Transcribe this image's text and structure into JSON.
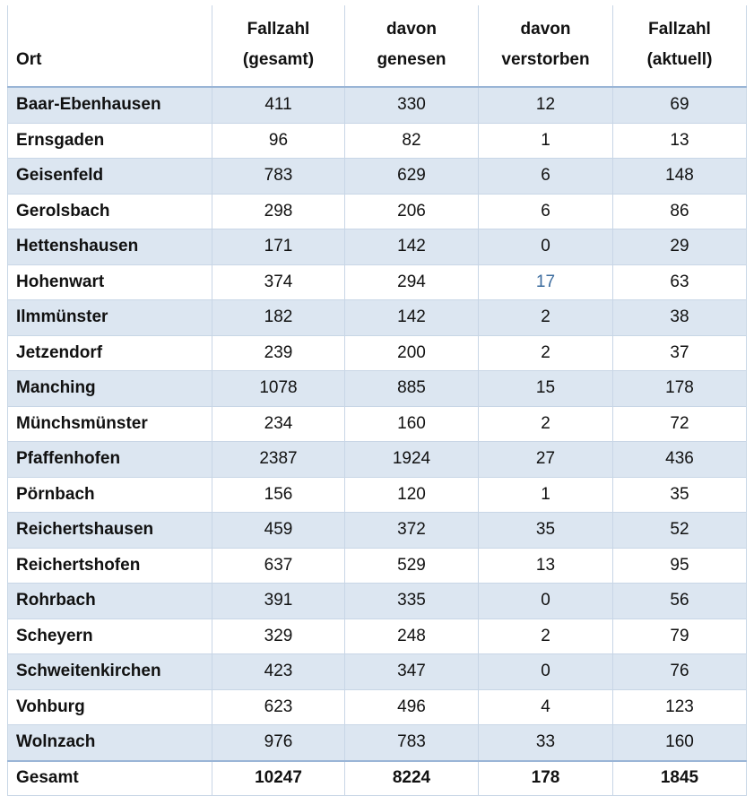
{
  "table": {
    "headers": [
      [
        "Ort"
      ],
      [
        "Fallzahl",
        "(gesamt)"
      ],
      [
        "davon",
        "genesen"
      ],
      [
        "davon",
        "verstorben"
      ],
      [
        "Fallzahl",
        "(aktuell)"
      ]
    ],
    "rows": [
      [
        "Baar-Ebenhausen",
        411,
        330,
        12,
        69
      ],
      [
        "Ernsgaden",
        96,
        82,
        1,
        13
      ],
      [
        "Geisenfeld",
        783,
        629,
        6,
        148
      ],
      [
        "Gerolsbach",
        298,
        206,
        6,
        86
      ],
      [
        "Hettenshausen",
        171,
        142,
        0,
        29
      ],
      [
        "Hohenwart",
        374,
        294,
        {
          "text": 17,
          "color": "#3c6c9e"
        },
        63
      ],
      [
        "Ilmmünster",
        182,
        142,
        2,
        38
      ],
      [
        "Jetzendorf",
        239,
        200,
        2,
        37
      ],
      [
        "Manching",
        1078,
        885,
        15,
        178
      ],
      [
        "Münchsmünster",
        234,
        160,
        2,
        72
      ],
      [
        "Pfaffenhofen",
        2387,
        1924,
        27,
        436
      ],
      [
        "Pörnbach",
        156,
        120,
        1,
        35
      ],
      [
        "Reichertshausen",
        459,
        372,
        35,
        52
      ],
      [
        "Reichertshofen",
        637,
        529,
        13,
        95
      ],
      [
        "Rohrbach",
        391,
        335,
        0,
        56
      ],
      [
        "Scheyern",
        329,
        248,
        2,
        79
      ],
      [
        "Schweitenkirchen",
        423,
        347,
        0,
        76
      ],
      [
        "Vohburg",
        623,
        496,
        4,
        123
      ],
      [
        "Wolnzach",
        976,
        783,
        33,
        160
      ]
    ],
    "total": [
      "Gesamt",
      10247,
      8224,
      178,
      1845
    ]
  }
}
